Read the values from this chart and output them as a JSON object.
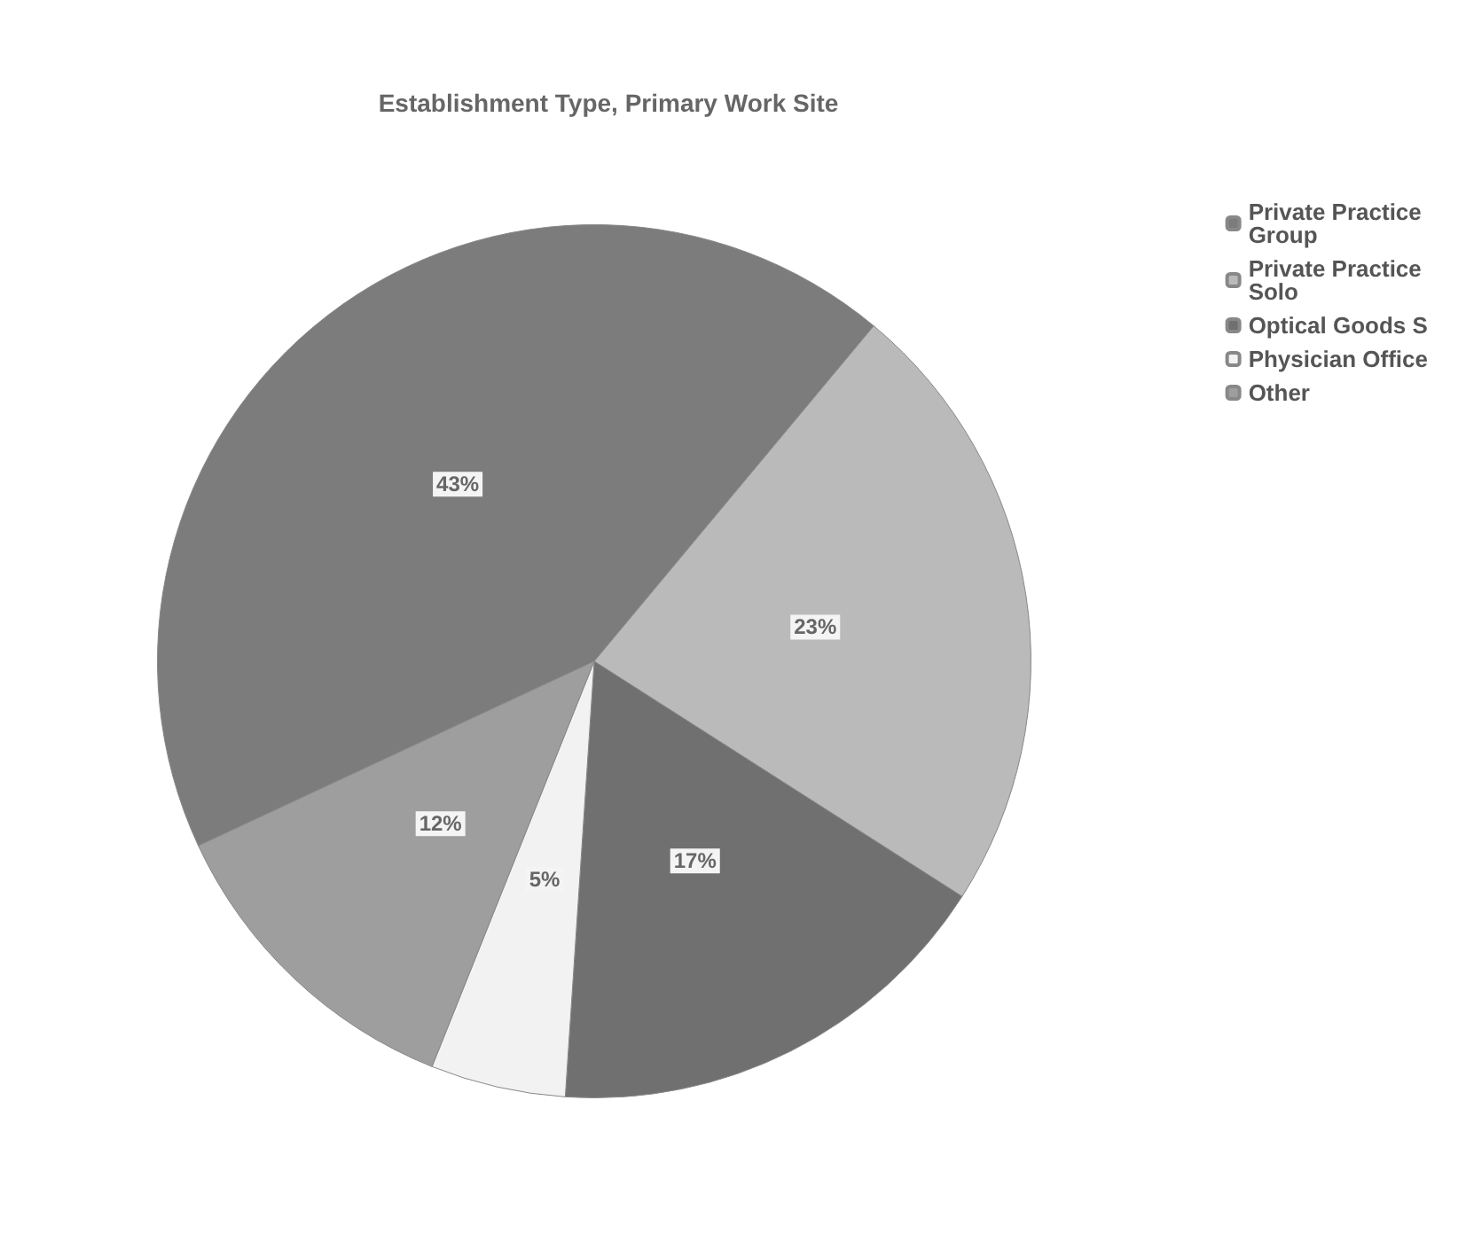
{
  "chart_data": {
    "type": "pie",
    "title": "Establishment Type, Primary Work Site",
    "categories": [
      "Private Practice Group",
      "Private Practice Solo",
      "Optical Goods S",
      "Physician Office",
      "Other"
    ],
    "values": [
      43,
      23,
      17,
      5,
      12
    ],
    "colors": [
      "#7c7c7c",
      "#bababa",
      "#707070",
      "#f2f2f2",
      "#9e9e9e"
    ],
    "value_labels": [
      "43%",
      "23%",
      "17%",
      "5%",
      "12%"
    ],
    "legend": "top right"
  }
}
